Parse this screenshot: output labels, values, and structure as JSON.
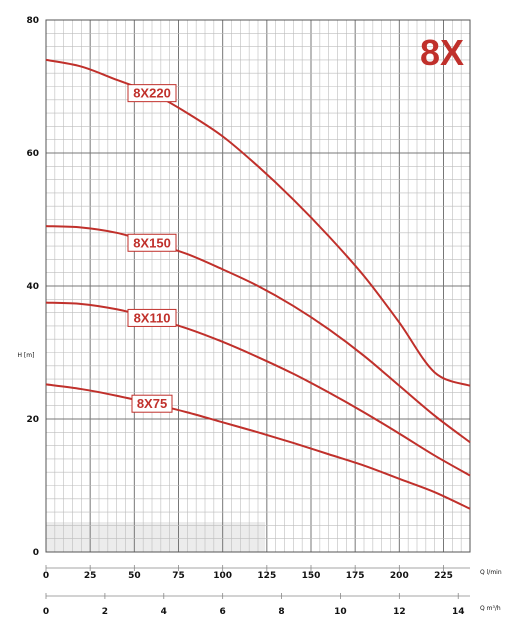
{
  "chart_data": {
    "type": "line",
    "title": "8X",
    "ylabel": "H [m]",
    "xlabel_primary": "Q l/min",
    "xlabel_secondary": "Q m³/h",
    "ylim": [
      0,
      80
    ],
    "xlim": [
      0,
      240
    ],
    "y_ticks": [
      "0",
      "20",
      "40",
      "60",
      "80"
    ],
    "x_ticks_primary": [
      "0",
      "25",
      "50",
      "75",
      "100",
      "125",
      "150",
      "175",
      "200",
      "225"
    ],
    "x_ticks_secondary": [
      "0",
      "2",
      "4",
      "6",
      "8",
      "10",
      "12",
      "14"
    ],
    "x_secondary_max": 14.4,
    "grid": true,
    "colors": {
      "curve": "#c0302b",
      "grid": "#999999",
      "label_border": "#c0302b"
    },
    "series": [
      {
        "name": "8X220",
        "label_x": 60,
        "x": [
          0,
          20,
          40,
          60,
          80,
          100,
          120,
          140,
          160,
          180,
          200,
          220,
          240
        ],
        "y": [
          74,
          73,
          71,
          69,
          66,
          62.5,
          58,
          53,
          47.5,
          41.5,
          34.5,
          27,
          25
        ]
      },
      {
        "name": "8X150",
        "label_x": 60,
        "x": [
          0,
          20,
          40,
          60,
          80,
          100,
          120,
          140,
          160,
          180,
          200,
          220,
          240
        ],
        "y": [
          49,
          48.8,
          48,
          46.5,
          44.8,
          42.5,
          40,
          37,
          33.5,
          29.5,
          25,
          20.5,
          16.5
        ]
      },
      {
        "name": "8X110",
        "label_x": 60,
        "x": [
          0,
          20,
          40,
          60,
          80,
          100,
          120,
          140,
          160,
          180,
          200,
          220,
          240
        ],
        "y": [
          37.5,
          37.3,
          36.5,
          35.2,
          33.6,
          31.6,
          29.3,
          26.8,
          24,
          21,
          17.8,
          14.5,
          11.5
        ]
      },
      {
        "name": "8X75",
        "label_x": 60,
        "x": [
          0,
          20,
          40,
          60,
          80,
          100,
          120,
          140,
          160,
          180,
          200,
          220,
          240
        ],
        "y": [
          25.2,
          24.5,
          23.5,
          22.3,
          21,
          19.5,
          18,
          16.4,
          14.7,
          13,
          11,
          9,
          6.5
        ]
      }
    ]
  }
}
